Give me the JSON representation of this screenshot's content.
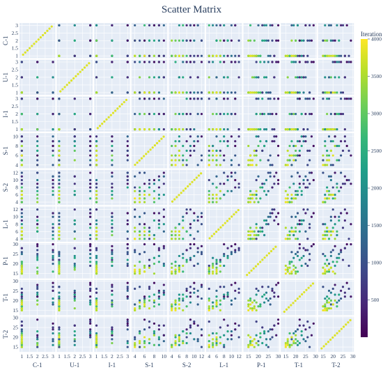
{
  "chart_data": {
    "type": "scatter",
    "title": "Scatter Matrix",
    "variables": [
      {
        "name": "C-1",
        "range": [
          0.85,
          3.15
        ],
        "ticks": [
          1,
          1.5,
          2,
          2.5,
          3
        ]
      },
      {
        "name": "U-1",
        "range": [
          0.85,
          3.15
        ],
        "ticks": [
          1,
          1.5,
          2,
          2.5,
          3
        ]
      },
      {
        "name": "I-1",
        "range": [
          0.85,
          3.15
        ],
        "ticks": [
          1,
          1.5,
          2,
          2.5,
          3
        ]
      },
      {
        "name": "S-1",
        "range": [
          3.3,
          10.7
        ],
        "ticks": [
          4,
          6,
          8,
          10
        ]
      },
      {
        "name": "S-2",
        "range": [
          3.2,
          12.8
        ],
        "ticks": [
          4,
          6,
          8,
          10,
          12
        ]
      },
      {
        "name": "L-1",
        "range": [
          3.2,
          12.8
        ],
        "ticks": [
          4,
          6,
          8,
          10,
          12
        ]
      },
      {
        "name": "P-1",
        "range": [
          12.5,
          30.5
        ],
        "ticks": [
          15,
          20,
          25,
          30
        ]
      },
      {
        "name": "T-1",
        "range": [
          12.5,
          30.5
        ],
        "ticks": [
          15,
          20,
          25,
          30
        ]
      },
      {
        "name": "T-2",
        "range": [
          12.5,
          30.5
        ],
        "ticks": [
          15,
          20,
          25,
          30
        ]
      }
    ],
    "color_variable": "Iteration",
    "colorscale": "Viridis",
    "color_range": [
      0,
      4000
    ],
    "colorbar_ticks": [
      500,
      1000,
      1500,
      2000,
      2500,
      3000,
      3500,
      4000
    ],
    "diagonal": "identity line of points coloured by iteration",
    "samples": [
      [
        1,
        1,
        1,
        4,
        4,
        4,
        15,
        15,
        15,
        3900
      ],
      [
        1,
        1,
        1,
        4,
        4,
        4,
        16,
        16,
        16,
        3820
      ],
      [
        1,
        1,
        1,
        5,
        4,
        5,
        15,
        17,
        15,
        3700
      ],
      [
        1,
        1,
        1,
        4,
        5,
        4,
        17,
        15,
        16,
        3950
      ],
      [
        1,
        1,
        1,
        5,
        5,
        5,
        16,
        16,
        17,
        3600
      ],
      [
        1,
        1,
        1,
        6,
        4,
        4,
        18,
        17,
        15,
        3500
      ],
      [
        2,
        1,
        1,
        4,
        4,
        6,
        15,
        18,
        16,
        3400
      ],
      [
        1,
        2,
        1,
        5,
        6,
        4,
        17,
        16,
        18,
        3300
      ],
      [
        1,
        1,
        2,
        6,
        5,
        5,
        19,
        19,
        17,
        3200
      ],
      [
        2,
        2,
        1,
        7,
        6,
        6,
        18,
        20,
        19,
        3000
      ],
      [
        1,
        1,
        1,
        8,
        4,
        5,
        20,
        17,
        16,
        2900
      ],
      [
        3,
        1,
        1,
        6,
        7,
        4,
        16,
        21,
        18,
        2700
      ],
      [
        1,
        3,
        1,
        9,
        5,
        7,
        21,
        18,
        20,
        2500
      ],
      [
        2,
        1,
        3,
        7,
        8,
        6,
        22,
        22,
        17,
        2300
      ],
      [
        1,
        2,
        2,
        10,
        6,
        8,
        19,
        23,
        21,
        2100
      ],
      [
        3,
        3,
        1,
        8,
        9,
        5,
        23,
        19,
        22,
        1900
      ],
      [
        2,
        1,
        1,
        9,
        10,
        9,
        24,
        24,
        19,
        1700
      ],
      [
        1,
        3,
        2,
        5,
        7,
        10,
        25,
        20,
        23,
        1500
      ],
      [
        3,
        2,
        3,
        10,
        11,
        6,
        20,
        25,
        18,
        1300
      ],
      [
        1,
        1,
        3,
        6,
        12,
        11,
        26,
        21,
        24,
        1100
      ],
      [
        2,
        3,
        1,
        4,
        8,
        12,
        27,
        26,
        20,
        900
      ],
      [
        3,
        1,
        2,
        7,
        9,
        7,
        22,
        27,
        25,
        700
      ],
      [
        1,
        2,
        3,
        9,
        11,
        9,
        28,
        22,
        26,
        500
      ],
      [
        2,
        3,
        2,
        10,
        12,
        10,
        29,
        28,
        21,
        300
      ],
      [
        3,
        3,
        3,
        8,
        10,
        11,
        30,
        29,
        27,
        150
      ],
      [
        1,
        1,
        1,
        5,
        5,
        6,
        17,
        19,
        18,
        3750
      ],
      [
        1,
        1,
        1,
        7,
        6,
        5,
        18,
        16,
        19,
        3650
      ],
      [
        2,
        1,
        1,
        6,
        5,
        7,
        16,
        20,
        17,
        3100
      ],
      [
        1,
        1,
        2,
        5,
        8,
        6,
        21,
        17,
        22,
        2800
      ],
      [
        3,
        2,
        1,
        9,
        6,
        8,
        24,
        21,
        16,
        2000
      ],
      [
        1,
        3,
        3,
        7,
        10,
        4,
        19,
        26,
        28,
        800
      ],
      [
        2,
        2,
        2,
        8,
        7,
        9,
        23,
        23,
        23,
        2400
      ],
      [
        3,
        1,
        2,
        4,
        11,
        10,
        26,
        18,
        19,
        1200
      ],
      [
        1,
        2,
        1,
        10,
        9,
        12,
        28,
        24,
        26,
        600
      ],
      [
        2,
        1,
        3,
        5,
        12,
        8,
        25,
        27,
        15,
        1000
      ],
      [
        1,
        1,
        1,
        6,
        6,
        6,
        16,
        18,
        20,
        3850
      ],
      [
        1,
        1,
        1,
        4,
        7,
        7,
        19,
        15,
        17,
        3550
      ],
      [
        3,
        3,
        2,
        9,
        8,
        11,
        27,
        25,
        24,
        400
      ],
      [
        2,
        3,
        3,
        6,
        9,
        8,
        30,
        22,
        29,
        250
      ],
      [
        1,
        1,
        1,
        8,
        5,
        4,
        15,
        20,
        21,
        3450
      ]
    ]
  }
}
